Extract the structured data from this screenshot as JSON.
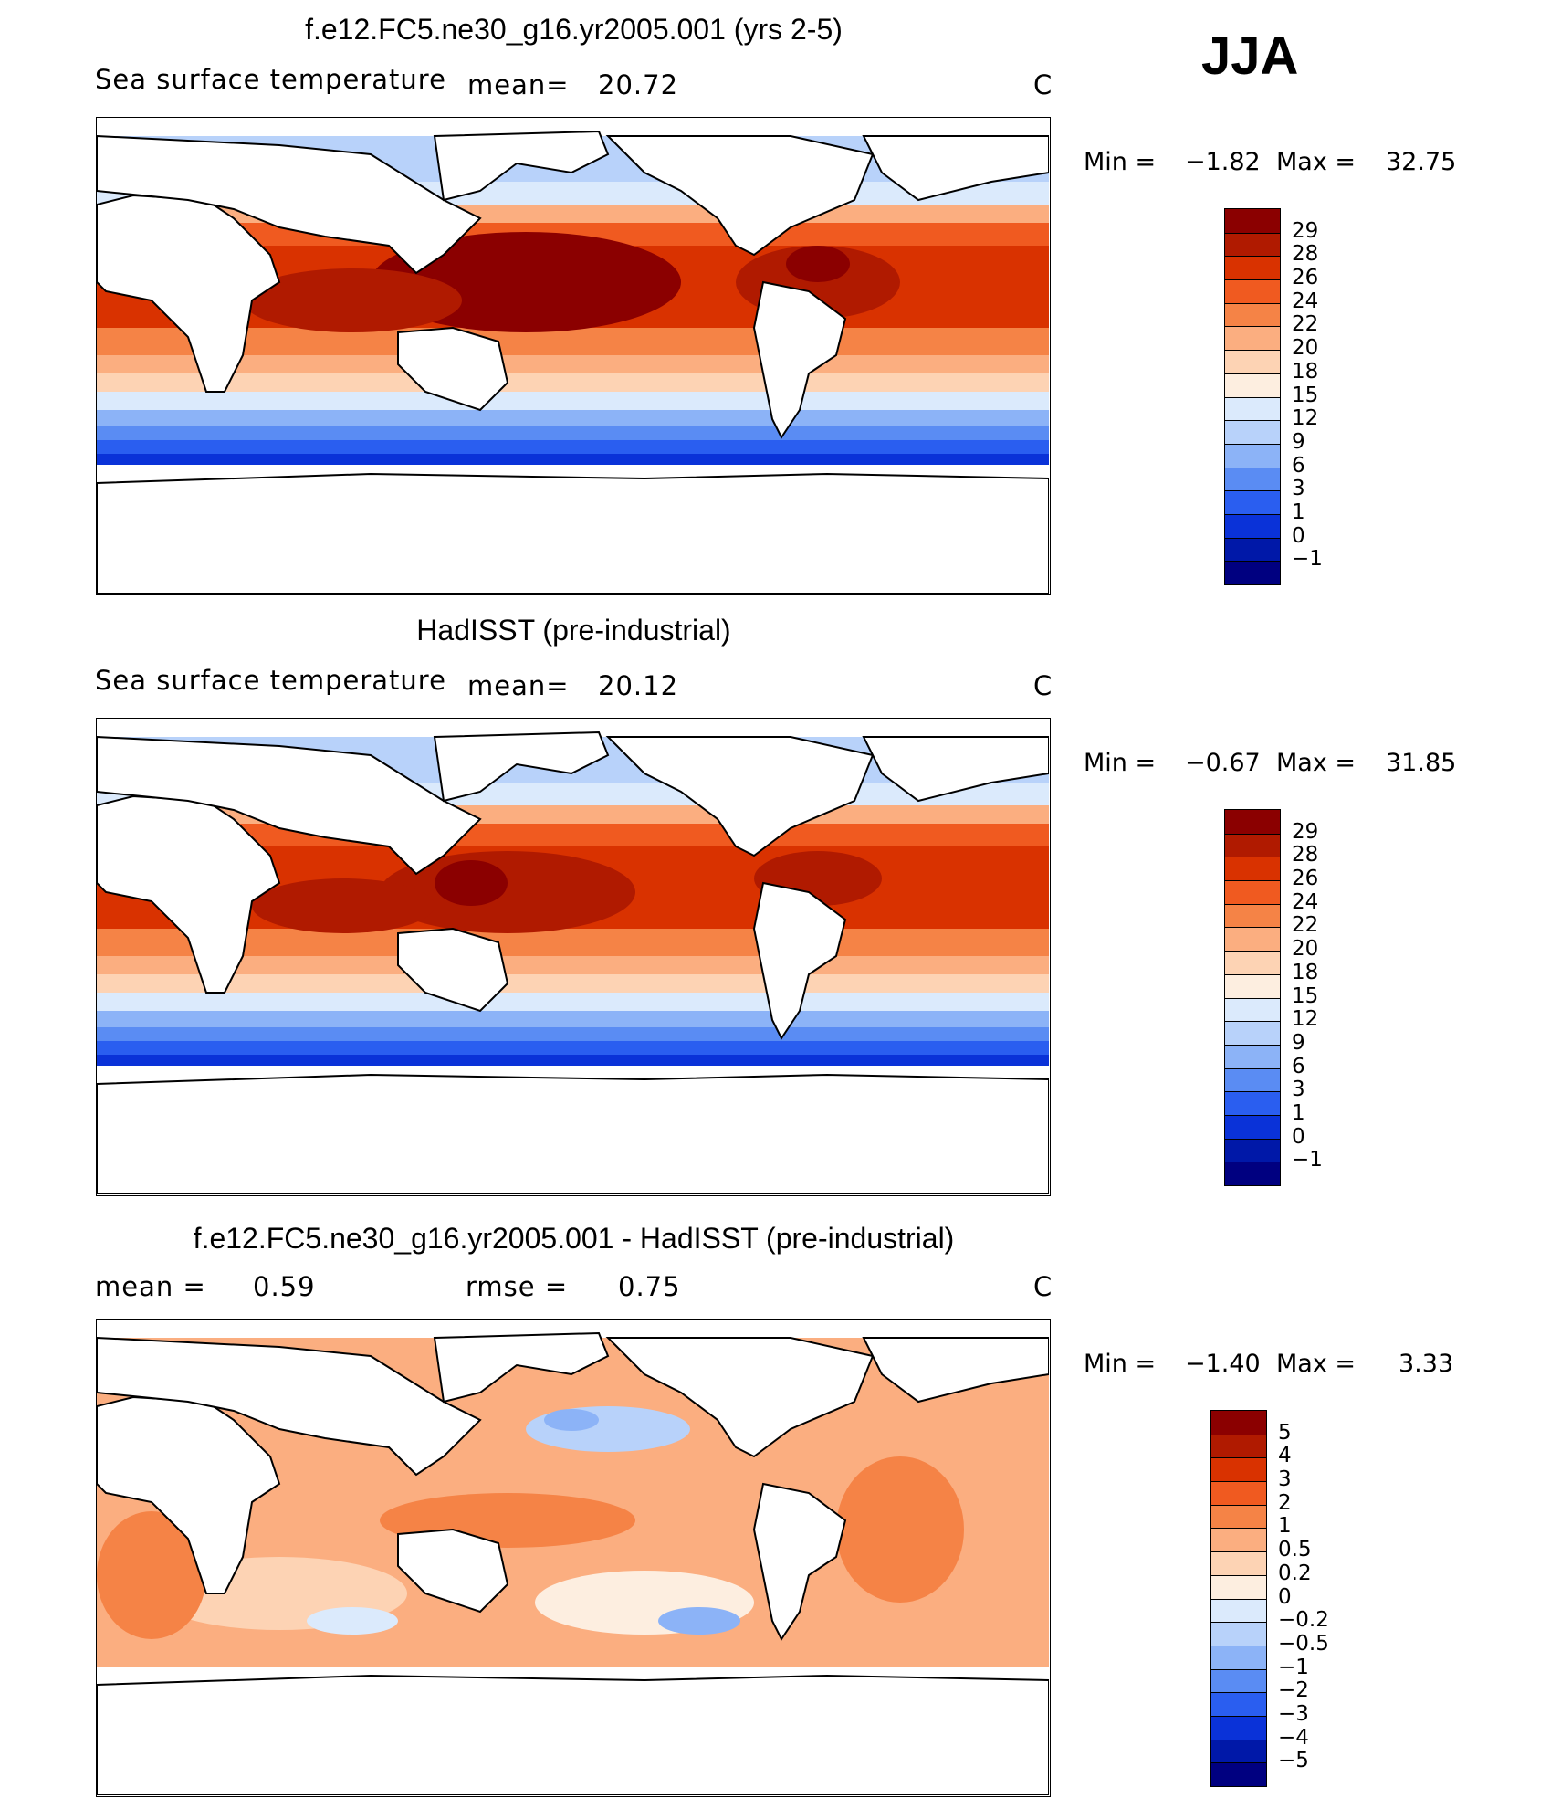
{
  "season": "JJA",
  "panels": [
    {
      "title": "f.e12.FC5.ne30_g16.yr2005.001 (yrs 2-5)",
      "left_text": "Sea surface temperature",
      "stat1_label": "mean=",
      "stat1_value": "20.72",
      "stat2_label": "",
      "stat2_value": "",
      "units": "C",
      "min_label": "Min =",
      "min_value": "−1.82",
      "max_label": "Max =",
      "max_value": "32.75",
      "colorbar_labels": [
        "29",
        "28",
        "26",
        "24",
        "22",
        "20",
        "18",
        "15",
        "12",
        "9",
        "6",
        "3",
        "1",
        "0",
        "−1"
      ],
      "colorbar_colors": [
        "#8b0000",
        "#b01a00",
        "#d93200",
        "#f05a20",
        "#f58346",
        "#fbae80",
        "#fdd3b4",
        "#fdeee0",
        "#dbeafc",
        "#b8d2fa",
        "#8cb3f7",
        "#5a8cf3",
        "#2a5ef0",
        "#0a32d8",
        "#0018a8",
        "#000080"
      ]
    },
    {
      "title": "HadISST (pre-industrial)",
      "left_text": "Sea surface temperature",
      "stat1_label": "mean=",
      "stat1_value": "20.12",
      "stat2_label": "",
      "stat2_value": "",
      "units": "C",
      "min_label": "Min =",
      "min_value": "−0.67",
      "max_label": "Max =",
      "max_value": "31.85",
      "colorbar_labels": [
        "29",
        "28",
        "26",
        "24",
        "22",
        "20",
        "18",
        "15",
        "12",
        "9",
        "6",
        "3",
        "1",
        "0",
        "−1"
      ],
      "colorbar_colors": [
        "#8b0000",
        "#b01a00",
        "#d93200",
        "#f05a20",
        "#f58346",
        "#fbae80",
        "#fdd3b4",
        "#fdeee0",
        "#dbeafc",
        "#b8d2fa",
        "#8cb3f7",
        "#5a8cf3",
        "#2a5ef0",
        "#0a32d8",
        "#0018a8",
        "#000080"
      ]
    },
    {
      "title": "f.e12.FC5.ne30_g16.yr2005.001 - HadISST (pre-industrial)",
      "left_text": "",
      "stat1_label": "mean =",
      "stat1_value": "0.59",
      "stat2_label": "rmse =",
      "stat2_value": "0.75",
      "units": "C",
      "min_label": "Min =",
      "min_value": "−1.40",
      "max_label": "Max =",
      "max_value": "3.33",
      "colorbar_labels": [
        "5",
        "4",
        "3",
        "2",
        "1",
        "0.5",
        "0.2",
        "0",
        "−0.2",
        "−0.5",
        "−1",
        "−2",
        "−3",
        "−4",
        "−5"
      ],
      "colorbar_colors": [
        "#8b0000",
        "#b01a00",
        "#d93200",
        "#f05a20",
        "#f58346",
        "#fbae80",
        "#fdd3b4",
        "#fdeee0",
        "#dbeafc",
        "#b8d2fa",
        "#8cb3f7",
        "#5a8cf3",
        "#2a5ef0",
        "#0a32d8",
        "#0018a8",
        "#000080"
      ]
    }
  ]
}
